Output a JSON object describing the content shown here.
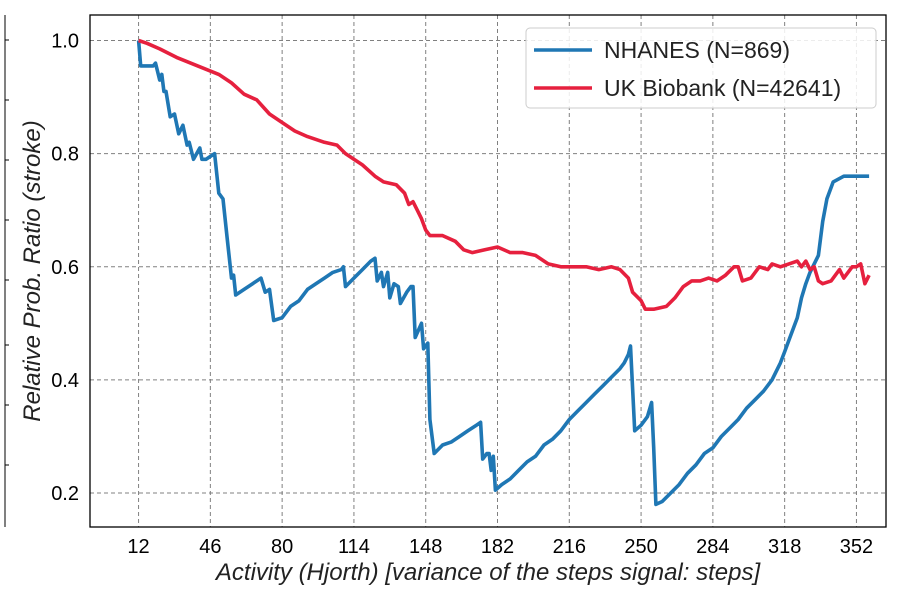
{
  "chart_data": {
    "type": "line",
    "xlabel": "Activity (Hjorth) [variance of the steps signal: steps]",
    "ylabel": "Relative Prob. Ratio (stroke)",
    "xlim": [
      -11,
      366
    ],
    "ylim": [
      0.14,
      1.045
    ],
    "x_ticks": [
      12,
      46,
      80,
      114,
      148,
      182,
      216,
      250,
      284,
      318,
      352
    ],
    "y_ticks": [
      0.2,
      0.4,
      0.6,
      0.8,
      1.0
    ],
    "y_tick_labels": [
      "0.2",
      "0.4",
      "0.6",
      "0.8",
      "1.0"
    ],
    "grid": true,
    "legend_position": "top-right",
    "series": [
      {
        "name": "NHANES (N=869)",
        "color": "#1f77b4",
        "points": [
          [
            12,
            1.0
          ],
          [
            13,
            0.955
          ],
          [
            19,
            0.955
          ],
          [
            20,
            0.96
          ],
          [
            22,
            0.93
          ],
          [
            23,
            0.94
          ],
          [
            24,
            0.91
          ],
          [
            25,
            0.91
          ],
          [
            27,
            0.865
          ],
          [
            29,
            0.87
          ],
          [
            31,
            0.835
          ],
          [
            33,
            0.85
          ],
          [
            35,
            0.815
          ],
          [
            36,
            0.82
          ],
          [
            38,
            0.79
          ],
          [
            41,
            0.81
          ],
          [
            42,
            0.79
          ],
          [
            44,
            0.79
          ],
          [
            46,
            0.795
          ],
          [
            48,
            0.8
          ],
          [
            50,
            0.73
          ],
          [
            52,
            0.72
          ],
          [
            54,
            0.65
          ],
          [
            56,
            0.58
          ],
          [
            57,
            0.585
          ],
          [
            58,
            0.55
          ],
          [
            62,
            0.56
          ],
          [
            66,
            0.57
          ],
          [
            70,
            0.58
          ],
          [
            72,
            0.555
          ],
          [
            74,
            0.56
          ],
          [
            76,
            0.505
          ],
          [
            80,
            0.51
          ],
          [
            84,
            0.53
          ],
          [
            88,
            0.54
          ],
          [
            92,
            0.56
          ],
          [
            96,
            0.57
          ],
          [
            100,
            0.58
          ],
          [
            104,
            0.59
          ],
          [
            108,
            0.595
          ],
          [
            109,
            0.6
          ],
          [
            110,
            0.565
          ],
          [
            114,
            0.58
          ],
          [
            118,
            0.595
          ],
          [
            122,
            0.61
          ],
          [
            124,
            0.615
          ],
          [
            125,
            0.575
          ],
          [
            127,
            0.59
          ],
          [
            128,
            0.565
          ],
          [
            130,
            0.59
          ],
          [
            131,
            0.545
          ],
          [
            133,
            0.57
          ],
          [
            135,
            0.565
          ],
          [
            136,
            0.535
          ],
          [
            139,
            0.555
          ],
          [
            141,
            0.565
          ],
          [
            142,
            0.565
          ],
          [
            143,
            0.475
          ],
          [
            146,
            0.5
          ],
          [
            147,
            0.455
          ],
          [
            149,
            0.465
          ],
          [
            150,
            0.33
          ],
          [
            152,
            0.27
          ],
          [
            156,
            0.285
          ],
          [
            160,
            0.29
          ],
          [
            164,
            0.3
          ],
          [
            168,
            0.31
          ],
          [
            172,
            0.32
          ],
          [
            174,
            0.325
          ],
          [
            175,
            0.26
          ],
          [
            177,
            0.27
          ],
          [
            178,
            0.27
          ],
          [
            179,
            0.24
          ],
          [
            180,
            0.265
          ],
          [
            181,
            0.205
          ],
          [
            184,
            0.215
          ],
          [
            188,
            0.225
          ],
          [
            192,
            0.24
          ],
          [
            196,
            0.255
          ],
          [
            200,
            0.265
          ],
          [
            204,
            0.285
          ],
          [
            208,
            0.295
          ],
          [
            212,
            0.31
          ],
          [
            216,
            0.33
          ],
          [
            220,
            0.345
          ],
          [
            224,
            0.36
          ],
          [
            228,
            0.375
          ],
          [
            232,
            0.39
          ],
          [
            236,
            0.405
          ],
          [
            240,
            0.42
          ],
          [
            242,
            0.43
          ],
          [
            244,
            0.445
          ],
          [
            245,
            0.46
          ],
          [
            247,
            0.31
          ],
          [
            250,
            0.32
          ],
          [
            253,
            0.335
          ],
          [
            255,
            0.36
          ],
          [
            256,
            0.28
          ],
          [
            257,
            0.18
          ],
          [
            260,
            0.185
          ],
          [
            264,
            0.2
          ],
          [
            268,
            0.215
          ],
          [
            272,
            0.235
          ],
          [
            276,
            0.25
          ],
          [
            280,
            0.27
          ],
          [
            284,
            0.28
          ],
          [
            288,
            0.3
          ],
          [
            292,
            0.315
          ],
          [
            296,
            0.33
          ],
          [
            300,
            0.35
          ],
          [
            304,
            0.365
          ],
          [
            308,
            0.38
          ],
          [
            312,
            0.4
          ],
          [
            316,
            0.43
          ],
          [
            318,
            0.45
          ],
          [
            320,
            0.47
          ],
          [
            324,
            0.51
          ],
          [
            326,
            0.545
          ],
          [
            328,
            0.57
          ],
          [
            330,
            0.59
          ],
          [
            334,
            0.62
          ],
          [
            336,
            0.68
          ],
          [
            338,
            0.72
          ],
          [
            341,
            0.75
          ],
          [
            346,
            0.76
          ],
          [
            358,
            0.76
          ]
        ]
      },
      {
        "name": "UK Biobank (N=42641)",
        "color": "#e6203e",
        "points": [
          [
            12,
            1.0
          ],
          [
            16,
            0.995
          ],
          [
            22,
            0.985
          ],
          [
            30,
            0.97
          ],
          [
            40,
            0.955
          ],
          [
            50,
            0.94
          ],
          [
            56,
            0.925
          ],
          [
            62,
            0.905
          ],
          [
            68,
            0.895
          ],
          [
            74,
            0.87
          ],
          [
            80,
            0.855
          ],
          [
            86,
            0.84
          ],
          [
            92,
            0.83
          ],
          [
            100,
            0.82
          ],
          [
            106,
            0.815
          ],
          [
            110,
            0.8
          ],
          [
            114,
            0.79
          ],
          [
            118,
            0.78
          ],
          [
            124,
            0.76
          ],
          [
            128,
            0.75
          ],
          [
            134,
            0.745
          ],
          [
            138,
            0.73
          ],
          [
            140,
            0.71
          ],
          [
            142,
            0.715
          ],
          [
            144,
            0.7
          ],
          [
            146,
            0.685
          ],
          [
            148,
            0.665
          ],
          [
            150,
            0.655
          ],
          [
            156,
            0.655
          ],
          [
            162,
            0.645
          ],
          [
            166,
            0.63
          ],
          [
            170,
            0.625
          ],
          [
            176,
            0.63
          ],
          [
            182,
            0.635
          ],
          [
            188,
            0.625
          ],
          [
            194,
            0.625
          ],
          [
            200,
            0.62
          ],
          [
            206,
            0.605
          ],
          [
            212,
            0.6
          ],
          [
            218,
            0.6
          ],
          [
            224,
            0.6
          ],
          [
            230,
            0.595
          ],
          [
            236,
            0.6
          ],
          [
            240,
            0.595
          ],
          [
            244,
            0.58
          ],
          [
            246,
            0.555
          ],
          [
            250,
            0.54
          ],
          [
            252,
            0.525
          ],
          [
            256,
            0.525
          ],
          [
            262,
            0.53
          ],
          [
            266,
            0.545
          ],
          [
            270,
            0.565
          ],
          [
            274,
            0.575
          ],
          [
            278,
            0.575
          ],
          [
            282,
            0.58
          ],
          [
            286,
            0.575
          ],
          [
            290,
            0.585
          ],
          [
            294,
            0.6
          ],
          [
            296,
            0.6
          ],
          [
            298,
            0.575
          ],
          [
            302,
            0.58
          ],
          [
            306,
            0.6
          ],
          [
            310,
            0.595
          ],
          [
            312,
            0.605
          ],
          [
            316,
            0.6
          ],
          [
            320,
            0.605
          ],
          [
            324,
            0.61
          ],
          [
            326,
            0.6
          ],
          [
            328,
            0.61
          ],
          [
            330,
            0.595
          ],
          [
            332,
            0.6
          ],
          [
            334,
            0.575
          ],
          [
            336,
            0.57
          ],
          [
            340,
            0.575
          ],
          [
            344,
            0.595
          ],
          [
            346,
            0.58
          ],
          [
            350,
            0.6
          ],
          [
            352,
            0.6
          ],
          [
            354,
            0.605
          ],
          [
            356,
            0.57
          ],
          [
            358,
            0.585
          ]
        ]
      }
    ]
  }
}
